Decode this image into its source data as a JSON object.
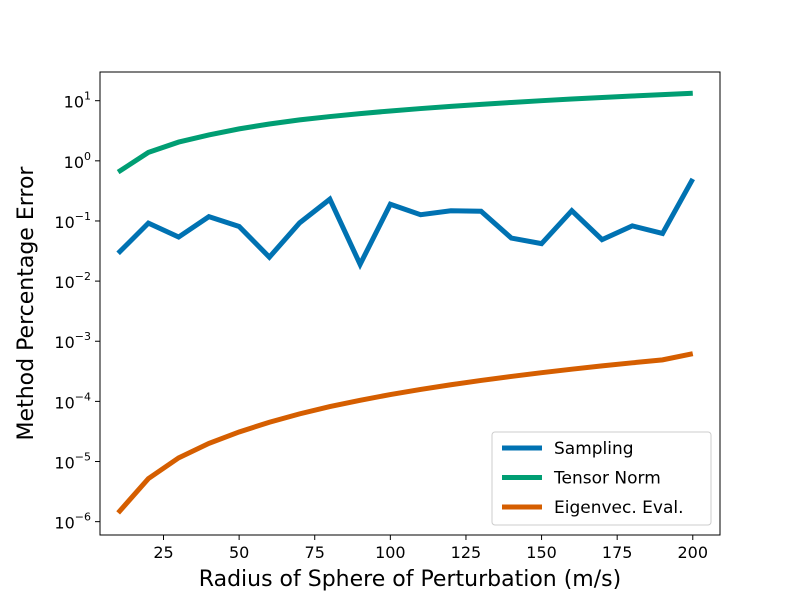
{
  "chart_data": {
    "type": "line",
    "title": "",
    "xlabel": "Radius of Sphere of Perturbation (m/s)",
    "ylabel": "Method Percentage Error",
    "yscale": "log",
    "xlim": [
      4,
      209
    ],
    "ylim": [
      6e-07,
      30
    ],
    "x_ticks": [
      25,
      50,
      75,
      100,
      125,
      150,
      175,
      200
    ],
    "x_tick_labels": [
      "25",
      "50",
      "75",
      "100",
      "125",
      "150",
      "175",
      "200"
    ],
    "y_ticks": [
      1e-06,
      1e-05,
      0.0001,
      0.001,
      0.01,
      0.1,
      1,
      10
    ],
    "y_tick_base": "10",
    "y_tick_exponents": [
      "−6",
      "−5",
      "−4",
      "−3",
      "−2",
      "−1",
      "0",
      "1"
    ],
    "grid": false,
    "legend_position": "lower-right",
    "x": [
      10,
      20,
      30,
      40,
      50,
      60,
      70,
      80,
      90,
      100,
      110,
      120,
      130,
      140,
      150,
      160,
      170,
      180,
      190,
      200
    ],
    "series": [
      {
        "name": "Sampling",
        "color": "#0072b2",
        "values": [
          0.029,
          0.092,
          0.054,
          0.118,
          0.081,
          0.025,
          0.093,
          0.23,
          0.019,
          0.19,
          0.127,
          0.148,
          0.145,
          0.052,
          0.042,
          0.148,
          0.049,
          0.083,
          0.062,
          0.5
        ]
      },
      {
        "name": "Tensor Norm",
        "color": "#009e73",
        "values": [
          0.65,
          1.38,
          2.05,
          2.7,
          3.4,
          4.1,
          4.8,
          5.45,
          6.1,
          6.75,
          7.4,
          8.05,
          8.7,
          9.35,
          10.0,
          10.65,
          11.3,
          11.95,
          12.6,
          13.3
        ]
      },
      {
        "name": "Eigenvec. Eval.",
        "color": "#d55e00",
        "values": [
          1.4e-06,
          5.2e-06,
          1.15e-05,
          2e-05,
          3.1e-05,
          4.5e-05,
          6.2e-05,
          8.2e-05,
          0.000104,
          0.00013,
          0.000158,
          0.000189,
          0.000223,
          0.00026,
          0.0003,
          0.000343,
          0.000389,
          0.000438,
          0.00049,
          0.00062
        ]
      }
    ]
  }
}
